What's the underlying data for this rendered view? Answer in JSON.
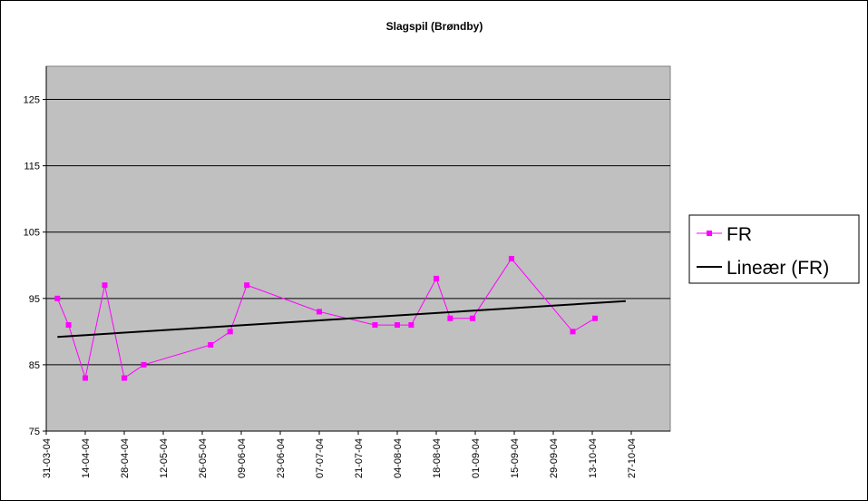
{
  "chart_data": {
    "type": "line",
    "title": "Slagspil (Brøndby)",
    "xlabel": "",
    "ylabel": "",
    "ylim": [
      75,
      130
    ],
    "y_ticks": [
      75,
      85,
      95,
      105,
      115,
      125
    ],
    "x_ticks": [
      "31-03-04",
      "14-04-04",
      "28-04-04",
      "12-05-04",
      "26-05-04",
      "09-06-04",
      "23-06-04",
      "07-07-04",
      "21-07-04",
      "04-08-04",
      "18-08-04",
      "01-09-04",
      "15-09-04",
      "29-09-04",
      "13-10-04",
      "27-10-04"
    ],
    "grid": "horizontal",
    "legend_position": "right",
    "plot_background": "#c0c0c0",
    "series": [
      {
        "name": "FR",
        "color": "#ff00ff",
        "marker": "square",
        "x": [
          "2004-04-04",
          "2004-04-08",
          "2004-04-14",
          "2004-04-21",
          "2004-04-28",
          "2004-05-05",
          "2004-05-29",
          "2004-06-05",
          "2004-06-11",
          "2004-07-07",
          "2004-07-27",
          "2004-08-04",
          "2004-08-09",
          "2004-08-18",
          "2004-08-23",
          "2004-08-31",
          "2004-09-14",
          "2004-10-06",
          "2004-10-14"
        ],
        "values": [
          95,
          91,
          83,
          97,
          83,
          85,
          88,
          90,
          97,
          93,
          91,
          91,
          91,
          98,
          92,
          92,
          101,
          90,
          92
        ]
      },
      {
        "name": "Lineær (FR)",
        "color": "#000000",
        "type": "trendline",
        "x": [
          "2004-04-04",
          "2004-10-25"
        ],
        "values": [
          89.2,
          94.6
        ]
      }
    ]
  }
}
